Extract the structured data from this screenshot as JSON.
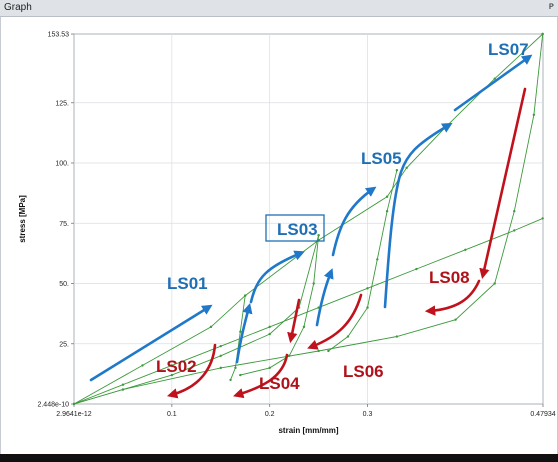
{
  "window": {
    "title": "Graph",
    "pin_icon": "pin-icon",
    "pin_glyph": "ᴩ"
  },
  "chart_data": {
    "type": "line",
    "title": "",
    "xlabel": "strain [mm/mm]",
    "ylabel": "stress [MPa]",
    "xlim": [
      0,
      0.47934
    ],
    "ylim": [
      0,
      153.53
    ],
    "x_ticks": [
      {
        "v": 0,
        "label": "2.9641e-12"
      },
      {
        "v": 0.1,
        "label": "0.1"
      },
      {
        "v": 0.2,
        "label": "0.2"
      },
      {
        "v": 0.3,
        "label": "0.3"
      },
      {
        "v": 0.47934,
        "label": "0.47934"
      }
    ],
    "y_ticks": [
      {
        "v": 0,
        "label": "2.448e-10"
      },
      {
        "v": 25,
        "label": "25."
      },
      {
        "v": 50,
        "label": "50."
      },
      {
        "v": 75,
        "label": "75."
      },
      {
        "v": 100,
        "label": "100."
      },
      {
        "v": 125,
        "label": "125."
      },
      {
        "v": 153.53,
        "label": "153.53"
      }
    ],
    "grid": true,
    "line_color": "#3c9a3c",
    "loading_curve": [
      [
        0,
        0
      ],
      [
        0.05,
        8
      ],
      [
        0.1,
        16
      ],
      [
        0.15,
        24
      ],
      [
        0.2,
        32
      ],
      [
        0.25,
        40
      ],
      [
        0.3,
        48
      ],
      [
        0.35,
        56
      ],
      [
        0.4,
        64
      ],
      [
        0.45,
        72
      ],
      [
        0.479,
        77
      ]
    ],
    "series": [
      {
        "points": [
          [
            0,
            0
          ],
          [
            0.07,
            16
          ],
          [
            0.14,
            32
          ],
          [
            0.175,
            45
          ],
          [
            0.25,
            68
          ],
          [
            0.32,
            86
          ],
          [
            0.34,
            98
          ],
          [
            0.38,
            115
          ],
          [
            0.43,
            135
          ],
          [
            0.479,
            153.53
          ]
        ]
      },
      {
        "points": [
          [
            0,
            0
          ],
          [
            0.05,
            6
          ],
          [
            0.1,
            12
          ],
          [
            0.15,
            20
          ],
          [
            0.2,
            29
          ],
          [
            0.23,
            40
          ],
          [
            0.25,
            70
          ]
        ]
      },
      {
        "points": [
          [
            0.175,
            45
          ],
          [
            0.17,
            30
          ],
          [
            0.165,
            15
          ],
          [
            0.16,
            10
          ]
        ]
      },
      {
        "points": [
          [
            0.25,
            70
          ],
          [
            0.245,
            50
          ],
          [
            0.235,
            32
          ],
          [
            0.22,
            20
          ],
          [
            0.2,
            15
          ],
          [
            0.17,
            12
          ]
        ]
      },
      {
        "points": [
          [
            0.33,
            97
          ],
          [
            0.32,
            80
          ],
          [
            0.31,
            60
          ],
          [
            0.3,
            40
          ],
          [
            0.28,
            28
          ],
          [
            0.26,
            22
          ]
        ]
      },
      {
        "points": [
          [
            0.479,
            153.53
          ],
          [
            0.47,
            120
          ],
          [
            0.45,
            80
          ],
          [
            0.43,
            50
          ],
          [
            0.39,
            35
          ],
          [
            0.33,
            28
          ],
          [
            0.25,
            22
          ],
          [
            0.15,
            15
          ],
          [
            0.05,
            6
          ],
          [
            0,
            0
          ]
        ]
      }
    ],
    "annotations": [
      {
        "text": "LS01",
        "color": "#1f6fb5",
        "boxed": false
      },
      {
        "text": "LS02",
        "color": "#b0121b",
        "boxed": false
      },
      {
        "text": "LS03",
        "color": "#1f6fb5",
        "boxed": true
      },
      {
        "text": "LS04",
        "color": "#b0121b",
        "boxed": false
      },
      {
        "text": "LS05",
        "color": "#1f6fb5",
        "boxed": false
      },
      {
        "text": "LS06",
        "color": "#b0121b",
        "boxed": false
      },
      {
        "text": "LS07",
        "color": "#1f6fb5",
        "boxed": false
      },
      {
        "text": "LS08",
        "color": "#b0121b",
        "boxed": false
      }
    ],
    "arrow_colors": {
      "loading": "#1f78c8",
      "unloading": "#c0121c"
    }
  }
}
